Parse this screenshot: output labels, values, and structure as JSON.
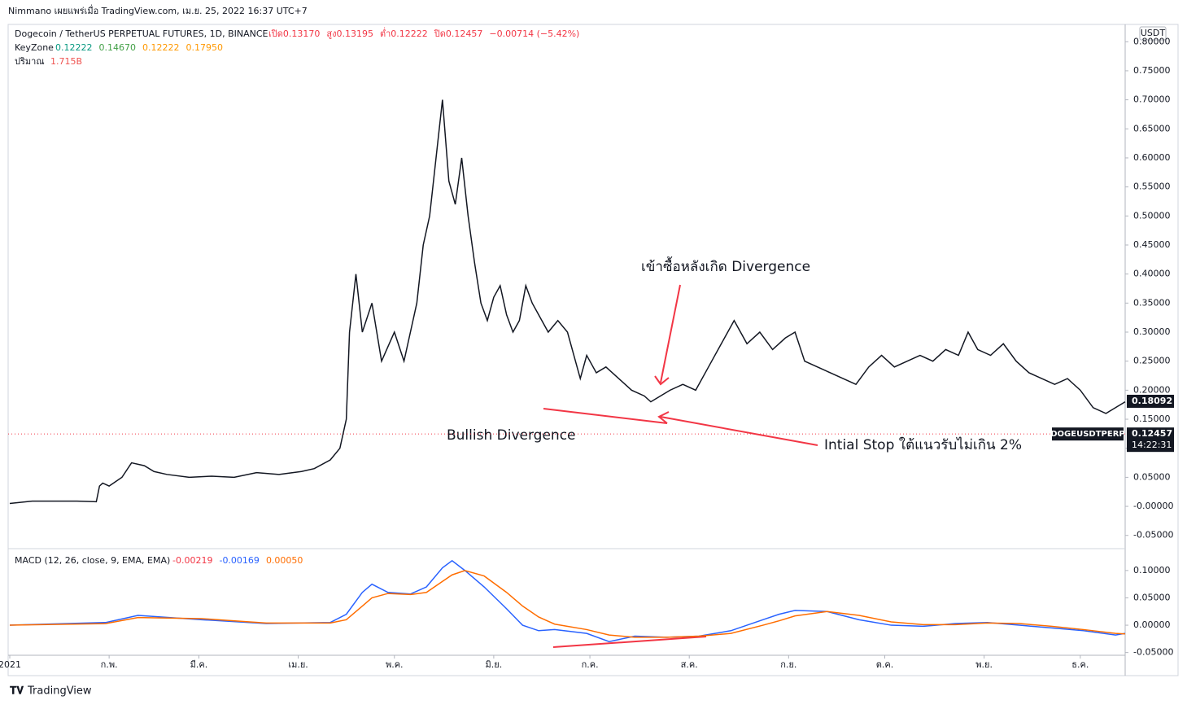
{
  "header": {
    "text": "Nimmano เผยแพร่เมื่อ TradingView.com, เม.ย. 25, 2022 16:37 UTC+7"
  },
  "legend": {
    "symbol": "Dogecoin / TetherUS PERPETUAL FUTURES, 1D, BINANCE",
    "ohlc": [
      "เปิด0.13170",
      "สูง0.13195",
      "ต่ำ0.12222",
      "ปิด0.12457",
      "−0.00714 (−5.42%)"
    ],
    "keyzone": "KeyZone",
    "keyzone_values": [
      "0.12222",
      "0.14670",
      "0.12222",
      "0.17950"
    ],
    "volume": "ปริมาณ",
    "volume_value": "1.715B",
    "macd": "MACD (12, 26, close, 9, EMA, EMA)",
    "macd_values": [
      "-0.00219",
      "-0.00169",
      "0.00050"
    ]
  },
  "currency": "USDT",
  "symbol_tag": "DOGEUSDTPERP",
  "countdown": "14:22:31",
  "annotations": [
    "เข้าซื้อหลังเกิด Divergence",
    "Bullish Divergence",
    "Intial Stop ใต้แนวรับไม่เกิน 2%"
  ],
  "footer": "TradingView",
  "chart_data": [
    {
      "type": "line",
      "x": [
        0,
        7,
        14,
        21,
        27,
        28,
        29,
        31,
        35,
        38,
        42,
        45,
        49,
        56,
        63,
        70,
        77,
        84,
        91,
        95,
        100,
        103,
        105,
        106,
        108,
        110,
        113,
        116,
        120,
        123,
        127,
        129,
        131,
        133,
        135,
        137,
        139,
        141,
        143,
        145,
        147,
        149,
        151,
        153,
        155,
        157,
        159,
        161,
        163,
        165,
        168,
        171,
        174,
        176,
        178,
        180,
        183,
        186,
        190,
        194,
        198,
        200,
        203,
        206,
        210,
        214,
        218,
        222,
        226,
        230,
        234,
        238,
        242,
        245,
        248,
        252,
        256,
        260,
        264,
        268,
        272,
        276,
        280,
        284,
        288,
        292,
        296,
        299,
        302,
        306,
        310,
        314,
        318,
        322,
        326,
        330,
        334,
        338,
        342,
        345,
        348
      ],
      "series": [
        {
          "name": "DOGEUSDTPERP",
          "color": "#131722",
          "values": [
            0.005,
            0.009,
            0.009,
            0.009,
            0.008,
            0.035,
            0.04,
            0.035,
            0.05,
            0.075,
            0.07,
            0.06,
            0.055,
            0.05,
            0.052,
            0.05,
            0.058,
            0.055,
            0.06,
            0.065,
            0.08,
            0.1,
            0.15,
            0.3,
            0.4,
            0.3,
            0.35,
            0.25,
            0.3,
            0.25,
            0.35,
            0.45,
            0.5,
            0.6,
            0.7,
            0.56,
            0.52,
            0.6,
            0.5,
            0.42,
            0.35,
            0.32,
            0.36,
            0.38,
            0.33,
            0.3,
            0.32,
            0.38,
            0.35,
            0.33,
            0.3,
            0.32,
            0.3,
            0.26,
            0.22,
            0.26,
            0.23,
            0.24,
            0.22,
            0.2,
            0.19,
            0.18,
            0.19,
            0.2,
            0.21,
            0.2,
            0.24,
            0.28,
            0.32,
            0.28,
            0.3,
            0.27,
            0.29,
            0.3,
            0.25,
            0.24,
            0.23,
            0.22,
            0.21,
            0.24,
            0.26,
            0.24,
            0.25,
            0.26,
            0.25,
            0.27,
            0.26,
            0.3,
            0.27,
            0.26,
            0.28,
            0.25,
            0.23,
            0.22,
            0.21,
            0.22,
            0.2,
            0.17,
            0.16,
            0.17,
            0.18
          ]
        }
      ],
      "xlim": [
        0,
        348
      ],
      "xticks": [
        {
          "value": 0,
          "label": "2021"
        },
        {
          "value": 31,
          "label": "ก.พ."
        },
        {
          "value": 59,
          "label": "มี.ค."
        },
        {
          "value": 90,
          "label": "เม.ย."
        },
        {
          "value": 120,
          "label": "พ.ค."
        },
        {
          "value": 151,
          "label": "มิ.ย."
        },
        {
          "value": 181,
          "label": "ก.ค."
        },
        {
          "value": 212,
          "label": "ส.ค."
        },
        {
          "value": 243,
          "label": "ก.ย."
        },
        {
          "value": 273,
          "label": "ต.ค."
        },
        {
          "value": 304,
          "label": "พ.ย."
        },
        {
          "value": 334,
          "label": "ธ.ค."
        }
      ],
      "ylim": [
        -0.07,
        0.827
      ],
      "yticks": [
        {
          "value": 0.8,
          "label": "0.80000"
        },
        {
          "value": 0.75,
          "label": "0.75000"
        },
        {
          "value": 0.7,
          "label": "0.70000"
        },
        {
          "value": 0.65,
          "label": "0.65000"
        },
        {
          "value": 0.6,
          "label": "0.60000"
        },
        {
          "value": 0.55,
          "label": "0.55000"
        },
        {
          "value": 0.5,
          "label": "0.50000"
        },
        {
          "value": 0.45,
          "label": "0.45000"
        },
        {
          "value": 0.4,
          "label": "0.40000"
        },
        {
          "value": 0.35,
          "label": "0.35000"
        },
        {
          "value": 0.3,
          "label": "0.30000"
        },
        {
          "value": 0.25,
          "label": "0.25000"
        },
        {
          "value": 0.2,
          "label": "0.20000"
        },
        {
          "value": 0.15,
          "label": "0.15000"
        },
        {
          "value": 0.1,
          "label": "0.10000"
        },
        {
          "value": 0.05,
          "label": "0.05000"
        },
        {
          "value": 0,
          "label": "-0.00000"
        },
        {
          "value": -0.05,
          "label": "-0.05000"
        }
      ],
      "price_tag": {
        "value": 0.18092,
        "label": "0.18092"
      },
      "last_price": {
        "value": 0.12457,
        "label": "0.12457"
      }
    },
    {
      "type": "line",
      "x": [
        0,
        30,
        40,
        60,
        80,
        100,
        105,
        110,
        113,
        118,
        125,
        130,
        135,
        138,
        142,
        148,
        155,
        160,
        165,
        170,
        180,
        187,
        195,
        205,
        215,
        225,
        235,
        240,
        245,
        255,
        265,
        275,
        285,
        295,
        305,
        315,
        325,
        335,
        345,
        348
      ],
      "series": [
        {
          "name": "MACD",
          "color": "#2962ff",
          "values": [
            0,
            0.005,
            0.018,
            0.01,
            0.003,
            0.005,
            0.02,
            0.06,
            0.075,
            0.06,
            0.057,
            0.07,
            0.105,
            0.118,
            0.1,
            0.07,
            0.03,
            0.0,
            -0.01,
            -0.008,
            -0.015,
            -0.03,
            -0.02,
            -0.022,
            -0.02,
            -0.01,
            0.01,
            0.02,
            0.027,
            0.025,
            0.01,
            0.0,
            -0.002,
            0.003,
            0.005,
            0.0,
            -0.005,
            -0.01,
            -0.018,
            -0.015
          ]
        },
        {
          "name": "Signal",
          "color": "#ff6d00",
          "values": [
            0,
            0.003,
            0.014,
            0.012,
            0.004,
            0.004,
            0.01,
            0.035,
            0.05,
            0.058,
            0.056,
            0.06,
            0.08,
            0.092,
            0.1,
            0.09,
            0.06,
            0.035,
            0.015,
            0.002,
            -0.008,
            -0.018,
            -0.022,
            -0.022,
            -0.02,
            -0.015,
            0.0,
            0.008,
            0.017,
            0.025,
            0.018,
            0.006,
            0.001,
            0.001,
            0.004,
            0.003,
            -0.002,
            -0.008,
            -0.015,
            -0.016
          ]
        }
      ],
      "xlim": [
        0,
        348
      ],
      "ylim": [
        -0.052,
        0.137
      ],
      "yticks": [
        {
          "value": 0.1,
          "label": "0.10000"
        },
        {
          "value": 0.05,
          "label": "0.05000"
        },
        {
          "value": 0,
          "label": "0.00000"
        },
        {
          "value": -0.05,
          "label": "-0.05000"
        }
      ]
    }
  ]
}
